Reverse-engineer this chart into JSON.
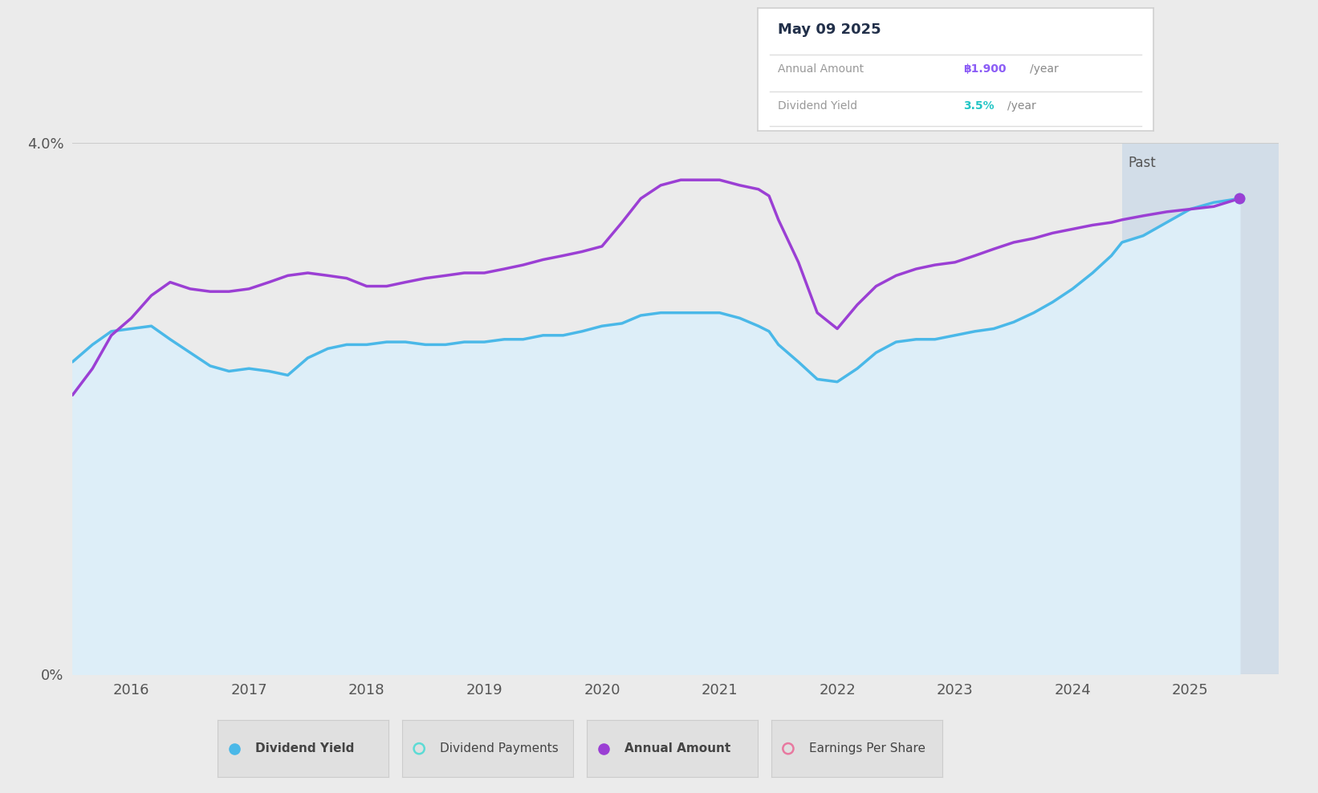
{
  "background_color": "#ebebeb",
  "plot_bg_color": "#ebebeb",
  "ylim": [
    0,
    4.0
  ],
  "xlim": [
    2015.5,
    2025.75
  ],
  "past_start": 2024.42,
  "div_yield_color": "#4ab8e8",
  "div_yield_fill_above": "#ddeef8",
  "div_yield_fill_below": "#c5dff0",
  "annual_amount_color": "#9b3fd4",
  "past_fill_color": "#c8d8e8",
  "xtick_years": [
    2016,
    2017,
    2018,
    2019,
    2020,
    2021,
    2022,
    2023,
    2024,
    2025
  ],
  "tooltip_title": "May 09 2025",
  "tooltip_row1_label": "Annual Amount",
  "tooltip_row1_value": "฿1.900",
  "tooltip_row1_suffix": "/year",
  "tooltip_row1_color": "#8b5cf6",
  "tooltip_row2_label": "Dividend Yield",
  "tooltip_row2_value": "3.5%",
  "tooltip_row2_suffix": "/year",
  "tooltip_row2_color": "#22c5c5",
  "div_yield_x": [
    2015.5,
    2015.67,
    2015.83,
    2016.0,
    2016.17,
    2016.33,
    2016.5,
    2016.67,
    2016.83,
    2017.0,
    2017.17,
    2017.33,
    2017.5,
    2017.67,
    2017.83,
    2018.0,
    2018.17,
    2018.33,
    2018.5,
    2018.67,
    2018.83,
    2019.0,
    2019.17,
    2019.33,
    2019.5,
    2019.67,
    2019.83,
    2020.0,
    2020.17,
    2020.33,
    2020.5,
    2020.67,
    2020.83,
    2021.0,
    2021.17,
    2021.33,
    2021.42,
    2021.5,
    2021.67,
    2021.83,
    2022.0,
    2022.17,
    2022.33,
    2022.5,
    2022.67,
    2022.83,
    2023.0,
    2023.17,
    2023.33,
    2023.5,
    2023.67,
    2023.83,
    2024.0,
    2024.17,
    2024.33,
    2024.42,
    2024.6,
    2024.8,
    2025.0,
    2025.2,
    2025.42
  ],
  "div_yield_y": [
    2.35,
    2.48,
    2.58,
    2.6,
    2.62,
    2.52,
    2.42,
    2.32,
    2.28,
    2.3,
    2.28,
    2.25,
    2.38,
    2.45,
    2.48,
    2.48,
    2.5,
    2.5,
    2.48,
    2.48,
    2.5,
    2.5,
    2.52,
    2.52,
    2.55,
    2.55,
    2.58,
    2.62,
    2.64,
    2.7,
    2.72,
    2.72,
    2.72,
    2.72,
    2.68,
    2.62,
    2.58,
    2.48,
    2.35,
    2.22,
    2.2,
    2.3,
    2.42,
    2.5,
    2.52,
    2.52,
    2.55,
    2.58,
    2.6,
    2.65,
    2.72,
    2.8,
    2.9,
    3.02,
    3.15,
    3.25,
    3.3,
    3.4,
    3.5,
    3.55,
    3.58
  ],
  "annual_amount_x": [
    2015.5,
    2015.67,
    2015.83,
    2016.0,
    2016.17,
    2016.33,
    2016.5,
    2016.67,
    2016.83,
    2017.0,
    2017.17,
    2017.33,
    2017.5,
    2017.67,
    2017.83,
    2018.0,
    2018.17,
    2018.33,
    2018.5,
    2018.67,
    2018.83,
    2019.0,
    2019.17,
    2019.33,
    2019.5,
    2019.67,
    2019.83,
    2020.0,
    2020.17,
    2020.33,
    2020.5,
    2020.67,
    2020.83,
    2021.0,
    2021.17,
    2021.33,
    2021.42,
    2021.5,
    2021.67,
    2021.83,
    2022.0,
    2022.17,
    2022.33,
    2022.5,
    2022.67,
    2022.83,
    2023.0,
    2023.17,
    2023.33,
    2023.5,
    2023.67,
    2023.83,
    2024.0,
    2024.17,
    2024.33,
    2024.42,
    2024.6,
    2024.8,
    2025.0,
    2025.2,
    2025.42
  ],
  "annual_amount_y": [
    2.1,
    2.3,
    2.55,
    2.68,
    2.85,
    2.95,
    2.9,
    2.88,
    2.88,
    2.9,
    2.95,
    3.0,
    3.02,
    3.0,
    2.98,
    2.92,
    2.92,
    2.95,
    2.98,
    3.0,
    3.02,
    3.02,
    3.05,
    3.08,
    3.12,
    3.15,
    3.18,
    3.22,
    3.4,
    3.58,
    3.68,
    3.72,
    3.72,
    3.72,
    3.68,
    3.65,
    3.6,
    3.42,
    3.1,
    2.72,
    2.6,
    2.78,
    2.92,
    3.0,
    3.05,
    3.08,
    3.1,
    3.15,
    3.2,
    3.25,
    3.28,
    3.32,
    3.35,
    3.38,
    3.4,
    3.42,
    3.45,
    3.48,
    3.5,
    3.52,
    3.58
  ],
  "legend_items": [
    {
      "label": "Dividend Yield",
      "color": "#4ab8e8",
      "filled": true,
      "bold": true
    },
    {
      "label": "Dividend Payments",
      "color": "#5ddbd5",
      "filled": false,
      "bold": false
    },
    {
      "label": "Annual Amount",
      "color": "#9b3fd4",
      "filled": true,
      "bold": true
    },
    {
      "label": "Earnings Per Share",
      "color": "#e879a0",
      "filled": false,
      "bold": false
    }
  ]
}
